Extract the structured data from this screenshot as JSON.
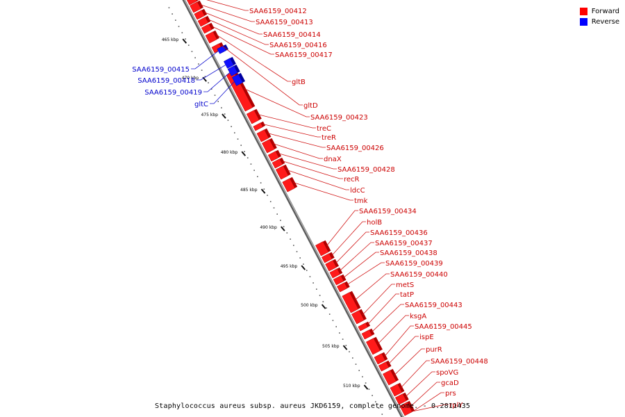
{
  "legend": {
    "forward_label": "Forward",
    "reverse_label": "Reverse",
    "forward_color": "#ff0000",
    "reverse_color": "#0000ff"
  },
  "caption": "Staphylococcus aureus subsp. aureus JKD6159, complete genome. - 0.2811435",
  "colors": {
    "backbone": "#808080",
    "tick": "#000000",
    "label_forward": "#cc0000",
    "label_reverse": "#0000cc"
  },
  "ticks": [
    "465 kbp",
    "470 kbp",
    "475 kbp",
    "480 kbp",
    "485 kbp",
    "490 kbp",
    "495 kbp",
    "500 kbp",
    "505 kbp",
    "510 kbp"
  ],
  "forward_genes": [
    "SAA6159_00412",
    "SAA6159_00413",
    "SAA6159_00414",
    "SAA6159_00416",
    "SAA6159_00417",
    "gltB",
    "gltD",
    "SAA6159_00423",
    "treC",
    "treR",
    "SAA6159_00426",
    "dnaX",
    "SAA6159_00428",
    "recR",
    "ldcC",
    "tmk",
    "SAA6159_00434",
    "holB",
    "SAA6159_00436",
    "SAA6159_00437",
    "SAA6159_00438",
    "SAA6159_00439",
    "SAA6159_00440",
    "metS",
    "tatP",
    "SAA6159_00443",
    "ksgA",
    "SAA6159_00445",
    "ispE",
    "purR",
    "SAA6159_00448",
    "spoVG",
    "gcaD",
    "prs",
    "rplY"
  ],
  "reverse_genes": [
    "SAA6159_00415",
    "SAA6159_00418",
    "SAA6159_00419",
    "gltC"
  ]
}
